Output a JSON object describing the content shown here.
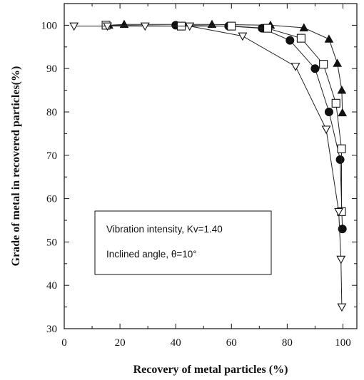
{
  "chart_data": {
    "type": "line",
    "xlabel": "Recovery of metal particles (%)",
    "ylabel": "Grade of metal in recovered particles(%)",
    "xlim": [
      0,
      105
    ],
    "ylim": [
      30,
      105
    ],
    "x_ticks": [
      "0",
      "20",
      "40",
      "60",
      "80",
      "100"
    ],
    "y_ticks": [
      "30",
      "40",
      "50",
      "60",
      "70",
      "80",
      "90",
      "100"
    ],
    "annotation_lines": [
      "Vibration intensity, Kv=1.40",
      "Inclined angle, θ=10°"
    ],
    "series": [
      {
        "marker": "filled-triangle",
        "points": [
          [
            16,
            100
          ],
          [
            21.5,
            100.2
          ],
          [
            53,
            100.2
          ],
          [
            74,
            100
          ],
          [
            86,
            99.4
          ],
          [
            95,
            96.8
          ],
          [
            98,
            91.2
          ],
          [
            99.6,
            85
          ],
          [
            99.8,
            79.8
          ]
        ]
      },
      {
        "marker": "filled-circle",
        "points": [
          [
            40,
            100
          ],
          [
            59,
            99.8
          ],
          [
            71,
            99.3
          ],
          [
            81,
            96.5
          ],
          [
            90,
            90
          ],
          [
            95,
            80
          ],
          [
            99,
            69
          ],
          [
            99.8,
            53
          ]
        ]
      },
      {
        "marker": "open-square",
        "points": [
          [
            15,
            100
          ],
          [
            42,
            99.8
          ],
          [
            60,
            99.8
          ],
          [
            73,
            99.3
          ],
          [
            85,
            97
          ],
          [
            93,
            91
          ],
          [
            97.5,
            82
          ],
          [
            99.5,
            71.5
          ],
          [
            99.5,
            57
          ]
        ]
      },
      {
        "marker": "open-triangle-down",
        "points": [
          [
            3.5,
            99.8
          ],
          [
            15.5,
            99.8
          ],
          [
            29,
            99.8
          ],
          [
            45,
            99.8
          ],
          [
            64,
            97.5
          ],
          [
            83,
            90.5
          ],
          [
            94,
            76
          ],
          [
            98.5,
            57
          ],
          [
            99.3,
            46
          ],
          [
            99.6,
            35
          ]
        ]
      }
    ]
  }
}
